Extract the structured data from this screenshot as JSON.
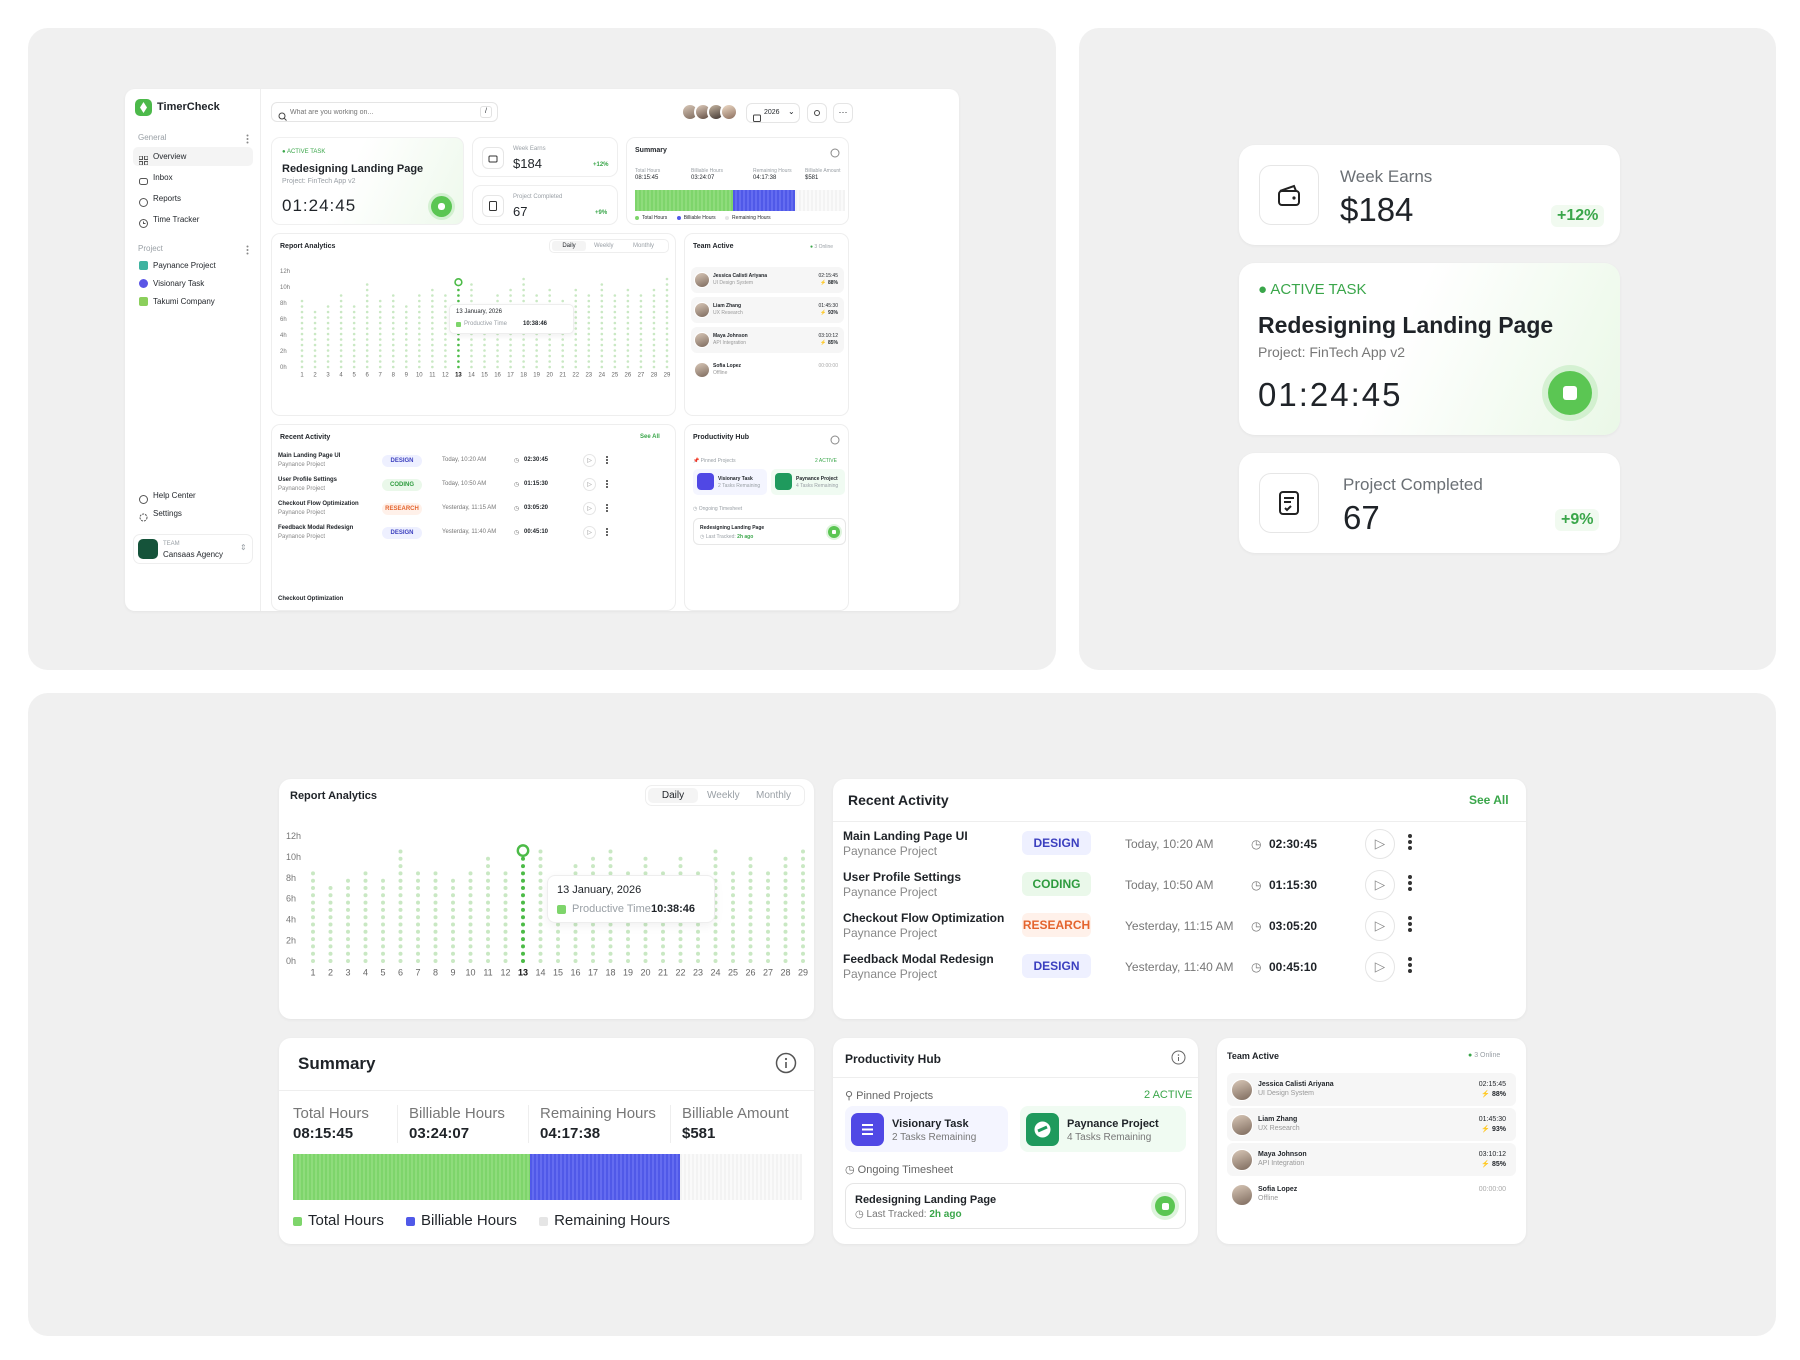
{
  "app": {
    "name": "TimerCheck"
  },
  "sidebar": {
    "general_label": "General",
    "project_label": "Project",
    "nav": [
      {
        "label": "Overview"
      },
      {
        "label": "Inbox"
      },
      {
        "label": "Reports"
      },
      {
        "label": "Time Tracker"
      }
    ],
    "projects": [
      {
        "label": "Paynance Project"
      },
      {
        "label": "Visionary Task"
      },
      {
        "label": "Takumi Company"
      }
    ],
    "footer": [
      {
        "label": "Help Center"
      },
      {
        "label": "Settings"
      }
    ],
    "team": {
      "caption": "TEAM",
      "name": "Cansaas Agency"
    }
  },
  "header": {
    "search_placeholder": "What are you working on...",
    "shortcut": "/",
    "year": "2026"
  },
  "active_task": {
    "status": "ACTIVE TASK",
    "title": "Redesigning Landing Page",
    "project": "Project: FinTech App v2",
    "timer": "01:24:45"
  },
  "week_earns": {
    "label": "Week Earns",
    "value": "$184",
    "delta": "+12%"
  },
  "project_completed": {
    "label": "Project Completed",
    "value": "67",
    "delta": "+9%"
  },
  "summary": {
    "title": "Summary",
    "stats": [
      {
        "label": "Total Hours",
        "value": "08:15:45"
      },
      {
        "label": "Billiable Hours",
        "value": "03:24:07"
      },
      {
        "label": "Remaining Hours",
        "value": "04:17:38"
      },
      {
        "label": "Billiable Amount",
        "value": "$581"
      }
    ],
    "legend": [
      "Total Hours",
      "Billiable Hours",
      "Remaining Hours"
    ],
    "bar_shares": {
      "total": 0.465,
      "billable": 0.295,
      "remaining": 0.24
    }
  },
  "report": {
    "title": "Report Analytics",
    "tabs": [
      "Daily",
      "Weekly",
      "Monthly"
    ],
    "tooltip": {
      "date": "13 January, 2026",
      "label": "Productive Time",
      "value": "10:38:46"
    }
  },
  "chart_data": {
    "type": "bar",
    "title": "Report Analytics",
    "x": [
      1,
      2,
      3,
      4,
      5,
      6,
      7,
      8,
      9,
      10,
      11,
      12,
      13,
      14,
      15,
      16,
      17,
      18,
      19,
      20,
      21,
      22,
      23,
      24,
      25,
      26,
      27,
      28,
      29
    ],
    "y_ticks": [
      "12h",
      "10h",
      "8h",
      "6h",
      "4h",
      "2h",
      "0h"
    ],
    "ylim": [
      0,
      12
    ],
    "values": [
      8.5,
      7,
      8,
      9,
      8,
      10.5,
      8.5,
      9,
      8,
      9,
      10,
      9,
      10.6,
      10.5,
      8,
      9.5,
      10,
      11,
      9,
      10,
      8.5,
      10,
      9,
      10.5,
      9,
      10,
      9,
      10,
      11
    ],
    "highlight_x": 13,
    "highlight_value": 10.6,
    "color_default": "#c9e8c3",
    "color_highlight": "#4cbb47"
  },
  "team_active": {
    "title": "Team Active",
    "online": "3 Online",
    "members": [
      {
        "name": "Jessica Calisti Ariyana",
        "role": "UI Design System",
        "time": "02:15:45",
        "percent": "88%"
      },
      {
        "name": "Liam Zhang",
        "role": "UX Research",
        "time": "01:45:30",
        "percent": "93%"
      },
      {
        "name": "Maya Johnson",
        "role": "API Integration",
        "time": "03:10:12",
        "percent": "85%"
      },
      {
        "name": "Sofia Lopez",
        "role": "Offline",
        "time": "00:00:00",
        "percent": ""
      }
    ]
  },
  "recent_activity": {
    "title": "Recent Activity",
    "see_all": "See All",
    "items": [
      {
        "title": "Main Landing Page UI",
        "project": "Paynance Project",
        "tag": "DESIGN",
        "when": "Today, 10:20 AM",
        "duration": "02:30:45"
      },
      {
        "title": "User Profile Settings",
        "project": "Paynance Project",
        "tag": "CODING",
        "when": "Today, 10:50 AM",
        "duration": "01:15:30"
      },
      {
        "title": "Checkout Flow Optimization",
        "project": "Paynance Project",
        "tag": "RESEARCH",
        "when": "Yesterday, 11:15 AM",
        "duration": "03:05:20"
      },
      {
        "title": "Feedback Modal Redesign",
        "project": "Paynance Project",
        "tag": "DESIGN",
        "when": "Yesterday, 11:40 AM",
        "duration": "00:45:10"
      }
    ],
    "partial_item": "Checkout Optimization"
  },
  "productivity": {
    "title": "Productivity Hub",
    "pinned_label": "Pinned Projects",
    "active_count": "2 ACTIVE",
    "pinned": [
      {
        "name": "Visionary Task",
        "sub": "2 Tasks Remaining"
      },
      {
        "name": "Paynance Project",
        "sub": "4 Tasks Remaining"
      }
    ],
    "ongoing_label": "Ongoing Timesheet",
    "ongoing": {
      "title": "Redesigning Landing Page",
      "last_label": "Last Tracked:",
      "last_value": "2h ago"
    }
  }
}
